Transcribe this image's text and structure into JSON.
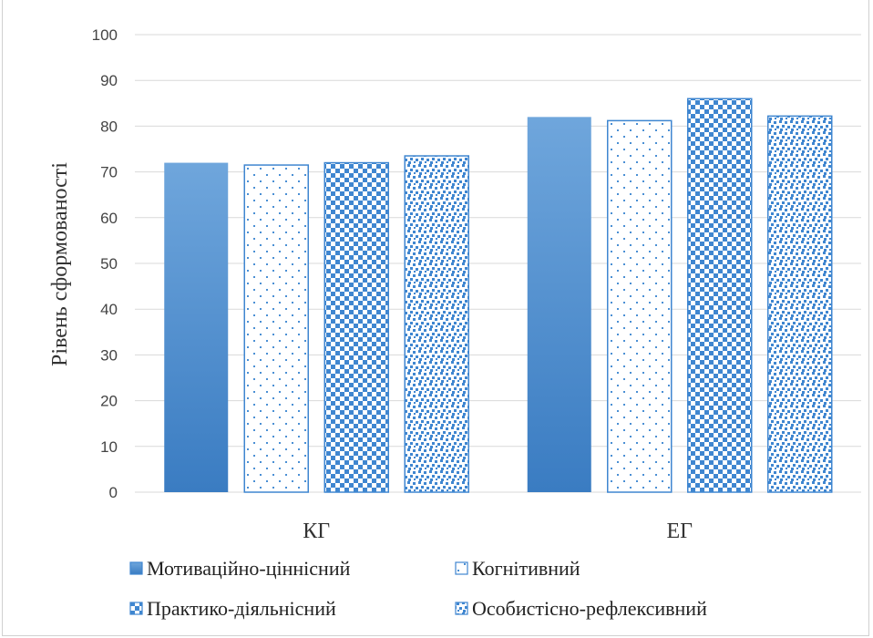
{
  "chart_data": {
    "type": "bar",
    "categories": [
      "КГ",
      "ЕГ"
    ],
    "series": [
      {
        "name": "Мотиваційно-ціннісний",
        "values": [
          72,
          82
        ],
        "pattern": "solid"
      },
      {
        "name": "Когнітивний",
        "values": [
          71.5,
          81.2
        ],
        "pattern": "dots"
      },
      {
        "name": "Практико-діяльнісний",
        "values": [
          72,
          86
        ],
        "pattern": "checker"
      },
      {
        "name": "Особистісно-рефлексивний",
        "values": [
          73.5,
          82.2
        ],
        "pattern": "confetti"
      }
    ],
    "ylabel": "Рівень сформованості",
    "ylim": [
      0,
      100
    ],
    "yticks": [
      "0",
      "10",
      "20",
      "30",
      "40",
      "50",
      "60",
      "70",
      "80",
      "90",
      "100"
    ],
    "grid": true,
    "legend_position": "bottom",
    "colors": {
      "accent": "#4a8fd4",
      "accent_dark": "#3a78c0",
      "gridline": "#d9d9d9",
      "text": "#333333"
    }
  }
}
